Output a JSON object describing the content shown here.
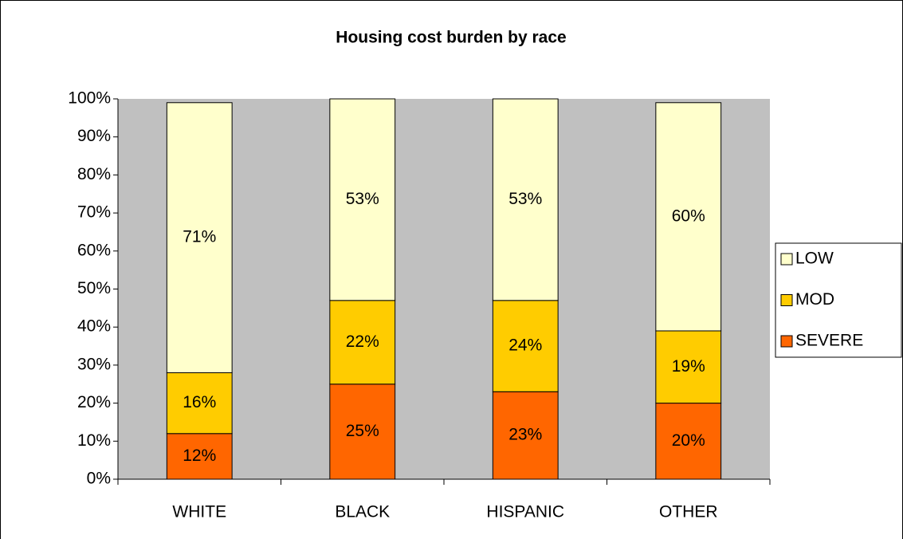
{
  "chart_data": {
    "type": "stacked_bar",
    "title": "Housing cost burden by race",
    "categories": [
      "WHITE",
      "BLACK",
      "HISPANIC",
      "OTHER"
    ],
    "series": [
      {
        "name": "SEVERE",
        "color": "#ff6600",
        "values": [
          12,
          25,
          23,
          20
        ],
        "value_labels": [
          "12%",
          "25%",
          "23%",
          "20%"
        ]
      },
      {
        "name": "MOD",
        "color": "#ffcc00",
        "values": [
          16,
          22,
          24,
          19
        ],
        "value_labels": [
          "16%",
          "22%",
          "24%",
          "19%"
        ]
      },
      {
        "name": "LOW",
        "color": "#ffffcc",
        "values": [
          71,
          53,
          53,
          60
        ],
        "value_labels": [
          "71%",
          "53%",
          "53%",
          "60%"
        ]
      }
    ],
    "ylim": [
      0,
      100
    ],
    "yticks": [
      {
        "value": 0,
        "label": "0%"
      },
      {
        "value": 10,
        "label": "10%"
      },
      {
        "value": 20,
        "label": "20%"
      },
      {
        "value": 30,
        "label": "30%"
      },
      {
        "value": 40,
        "label": "40%"
      },
      {
        "value": 50,
        "label": "50%"
      },
      {
        "value": 60,
        "label": "60%"
      },
      {
        "value": 70,
        "label": "70%"
      },
      {
        "value": 80,
        "label": "80%"
      },
      {
        "value": 90,
        "label": "90%"
      },
      {
        "value": 100,
        "label": "100%"
      }
    ],
    "plot_background": "#c0c0c0",
    "legend": "right"
  }
}
